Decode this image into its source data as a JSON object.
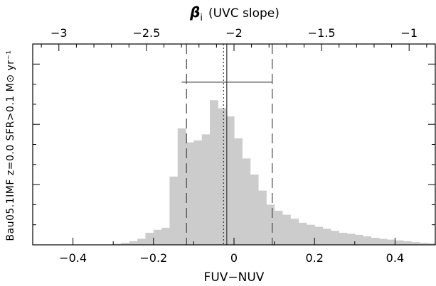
{
  "chart_data": {
    "type": "bar",
    "xlabel": "FUV−NUV",
    "ylabel": "Bau05.1IMF  z=0.0  SFR>0.1 M⊙ yr⁻¹",
    "top_axis": {
      "label_symbol": "β",
      "label_subscript": "i",
      "label_rest": "(UVC slope)",
      "ticks": [
        -3,
        -2.5,
        -2,
        -1.5,
        -1
      ],
      "tick_labels": [
        "−3",
        "−2.5",
        "−2",
        "−1.5",
        "−1"
      ]
    },
    "xlim": [
      -0.5,
      0.5
    ],
    "ylim": [
      0,
      1.0
    ],
    "x_ticks": [
      -0.4,
      -0.2,
      0,
      0.2,
      0.4
    ],
    "x_tick_labels": [
      "−0.4",
      "−0.2",
      "0",
      "0.2",
      "0.4"
    ],
    "bin_width": 0.02,
    "bins_left": [
      -0.3,
      -0.28,
      -0.26,
      -0.24,
      -0.22,
      -0.2,
      -0.18,
      -0.16,
      -0.14,
      -0.12,
      -0.1,
      -0.08,
      -0.06,
      -0.04,
      -0.02,
      0.0,
      0.02,
      0.04,
      0.06,
      0.08,
      0.1,
      0.12,
      0.14,
      0.16,
      0.18,
      0.2,
      0.22,
      0.24,
      0.26,
      0.28,
      0.3,
      0.32,
      0.34,
      0.36,
      0.38,
      0.4,
      0.42,
      0.44,
      0.46,
      0.48
    ],
    "values": [
      0.005,
      0.01,
      0.018,
      0.03,
      0.06,
      0.075,
      0.085,
      0.34,
      0.58,
      0.51,
      0.52,
      0.55,
      0.72,
      0.68,
      0.64,
      0.53,
      0.43,
      0.35,
      0.27,
      0.2,
      0.17,
      0.15,
      0.13,
      0.11,
      0.1,
      0.09,
      0.08,
      0.07,
      0.06,
      0.055,
      0.05,
      0.042,
      0.035,
      0.03,
      0.026,
      0.022,
      0.018,
      0.014,
      0.01,
      0.008
    ],
    "lines": {
      "solid_x": -0.018,
      "dotted_x": -0.026,
      "dashed_x": [
        -0.118,
        0.095
      ],
      "errorbar": {
        "xmin": -0.13,
        "xmax": 0.095,
        "y": 0.81
      }
    },
    "grid": false
  }
}
